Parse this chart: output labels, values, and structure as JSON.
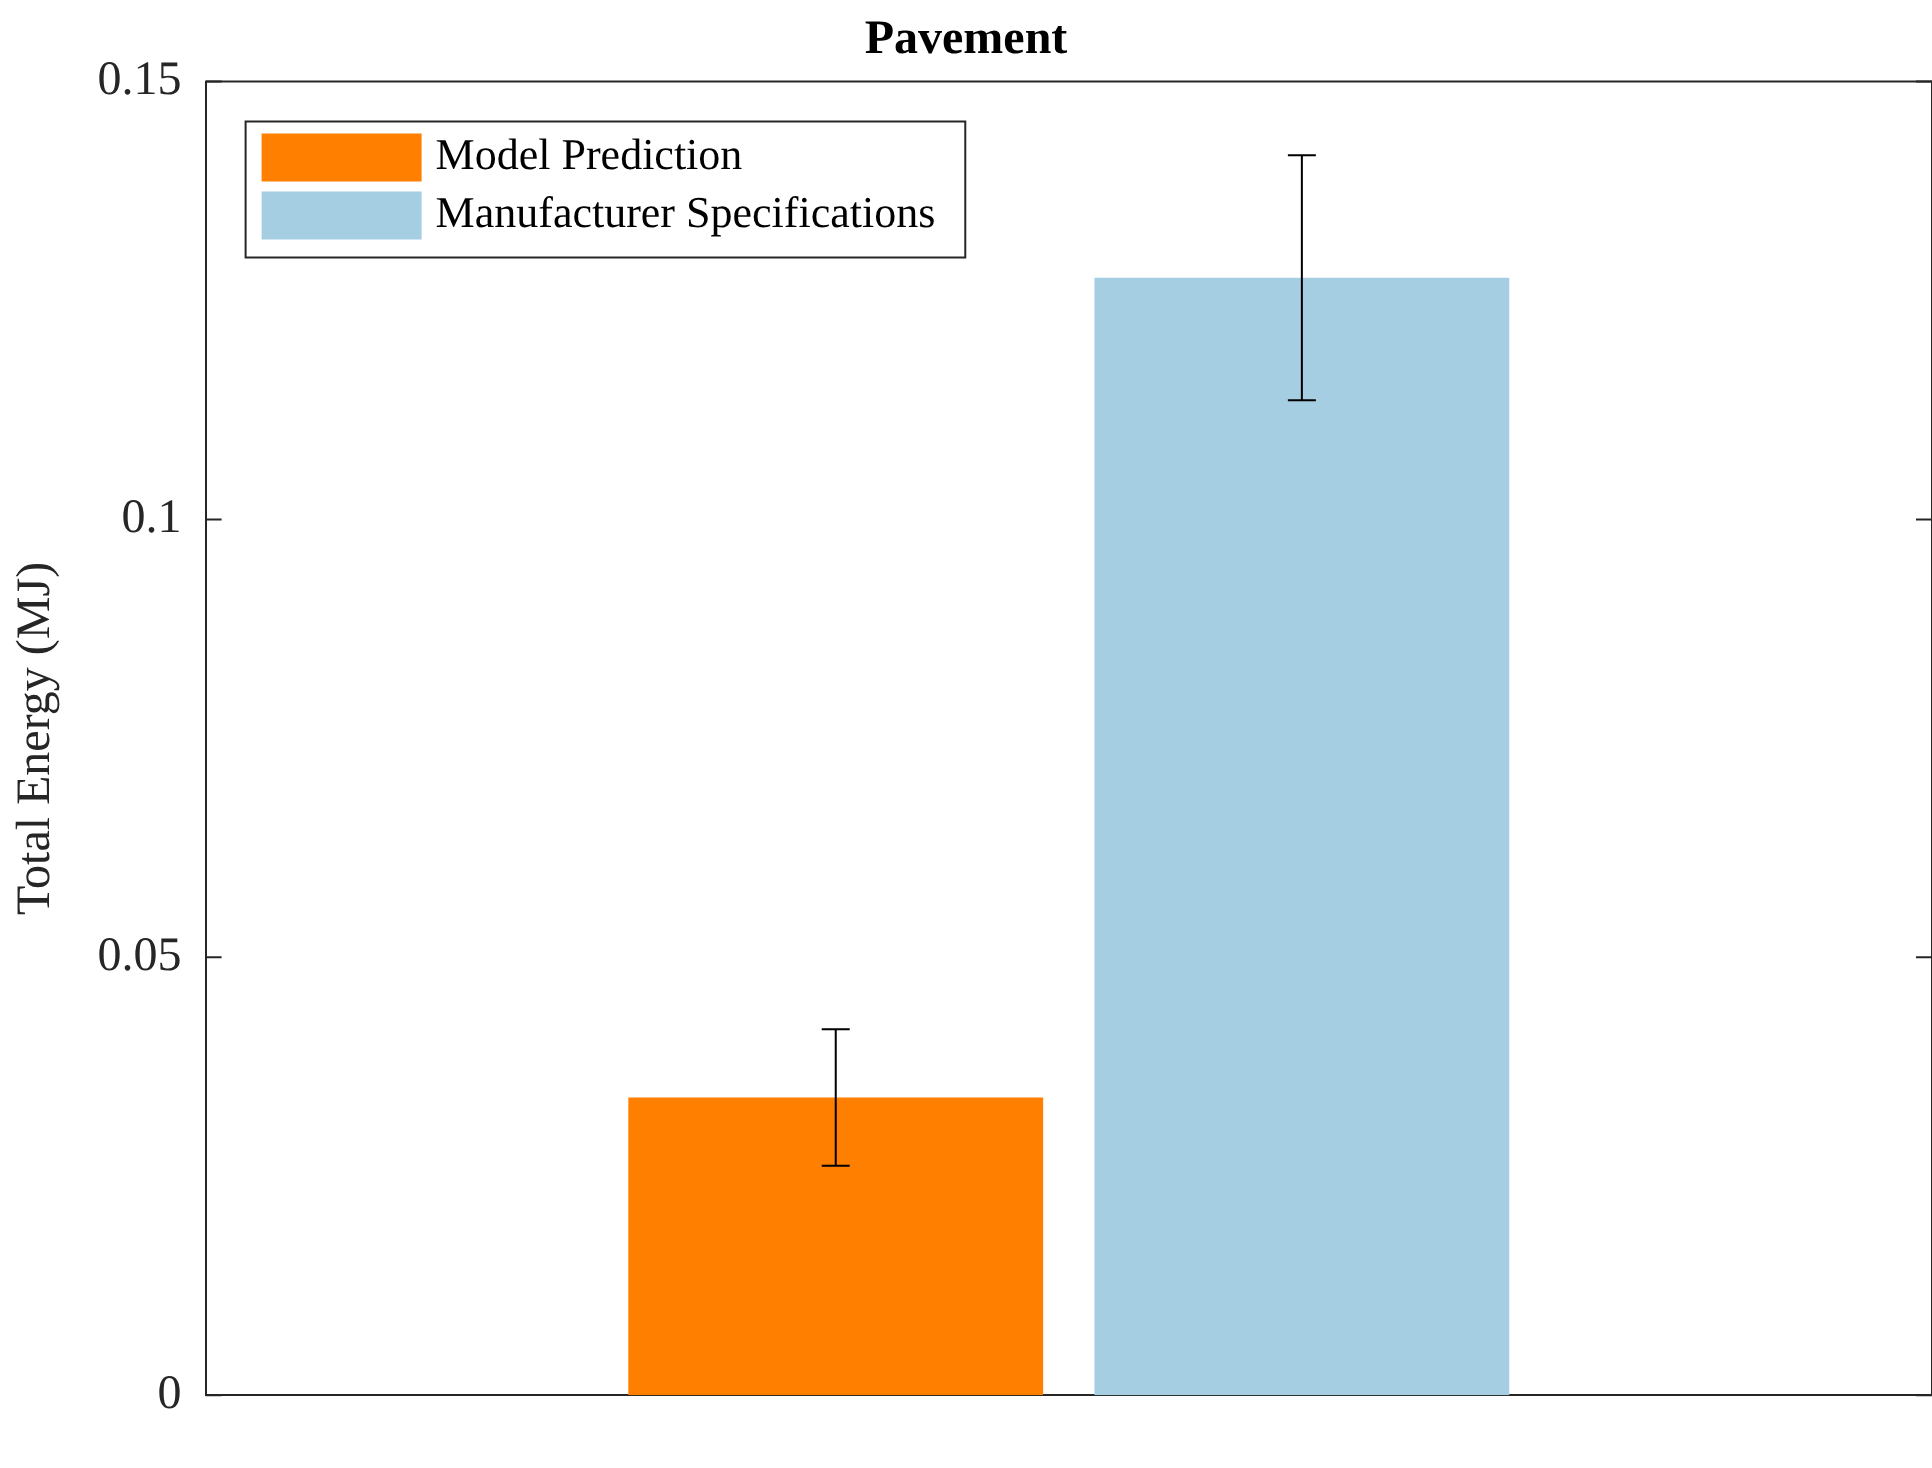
{
  "chart_data": {
    "type": "bar",
    "title": "Pavement",
    "ylabel": "Total Energy (MJ)",
    "categories": [
      null
    ],
    "series": [
      {
        "name": "Model Prediction",
        "color": "#ff7f00",
        "values": [
          0.034
        ],
        "errors": [
          0.0078
        ]
      },
      {
        "name": "Manufacturer Specifications",
        "color": "#a6cee3",
        "values": [
          0.1276
        ],
        "errors": [
          0.014
        ]
      }
    ],
    "ylim": [
      0,
      0.15
    ],
    "yticks": [
      0,
      0.05,
      0.1,
      0.15
    ],
    "grid": false,
    "legend": "top left"
  }
}
